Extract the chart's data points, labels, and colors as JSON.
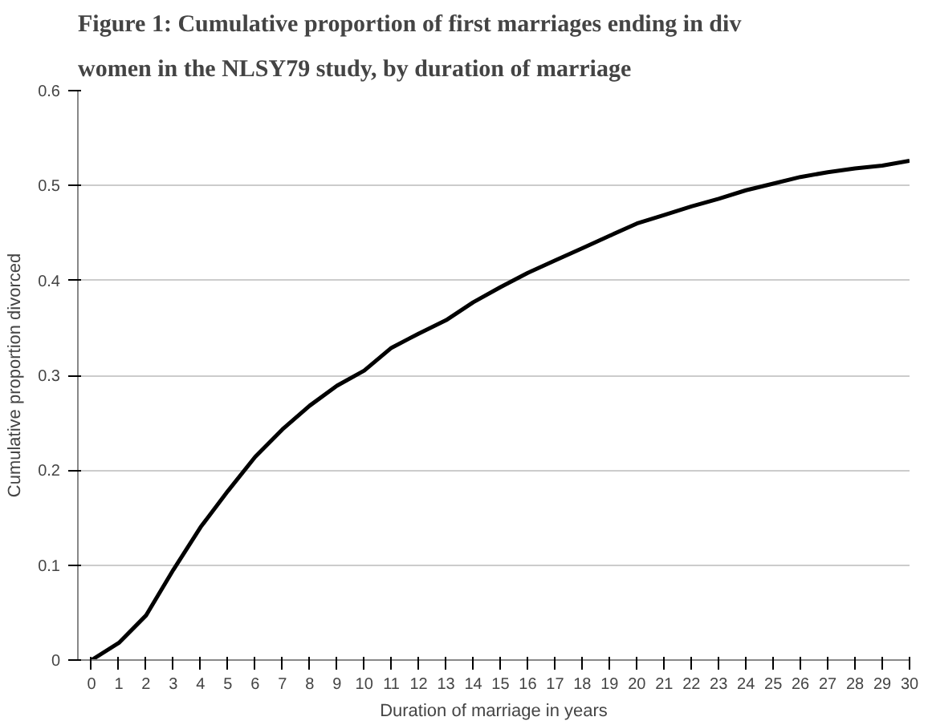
{
  "chart_data": {
    "type": "line",
    "title": "Figure 1: Cumulative proportion of first marriages ending in div",
    "subtitle": "women in the NLSY79 study, by duration of marriage",
    "xlabel": "Duration of marriage in years",
    "ylabel": "Cumulative proportion divorced",
    "x": [
      0,
      1,
      2,
      3,
      4,
      5,
      6,
      7,
      8,
      9,
      10,
      11,
      12,
      13,
      14,
      15,
      16,
      17,
      18,
      19,
      20,
      21,
      22,
      23,
      24,
      25,
      26,
      27,
      28,
      29,
      30
    ],
    "series": [
      {
        "color": "#000000",
        "values": [
          0,
          0.018,
          0.047,
          0.095,
          0.14,
          0.178,
          0.214,
          0.243,
          0.268,
          0.289,
          0.305,
          0.329,
          0.344,
          0.358,
          0.377,
          0.393,
          0.408,
          0.421,
          0.434,
          0.447,
          0.46,
          0.469,
          0.478,
          0.486,
          0.495,
          0.502,
          0.509,
          0.514,
          0.518,
          0.521,
          0.526
        ]
      }
    ],
    "xlim": [
      -0.5,
      30
    ],
    "xticks": [
      0,
      1,
      2,
      3,
      4,
      5,
      6,
      7,
      8,
      9,
      10,
      11,
      12,
      13,
      14,
      15,
      16,
      17,
      18,
      19,
      20,
      21,
      22,
      23,
      24,
      25,
      26,
      27,
      28,
      29,
      30
    ],
    "ylim": [
      0,
      0.6
    ],
    "yticks": [
      0,
      0.1,
      0.2,
      0.3,
      0.4,
      0.5,
      0.6
    ],
    "grid": "y",
    "marker": "none",
    "line_style": "solid"
  }
}
